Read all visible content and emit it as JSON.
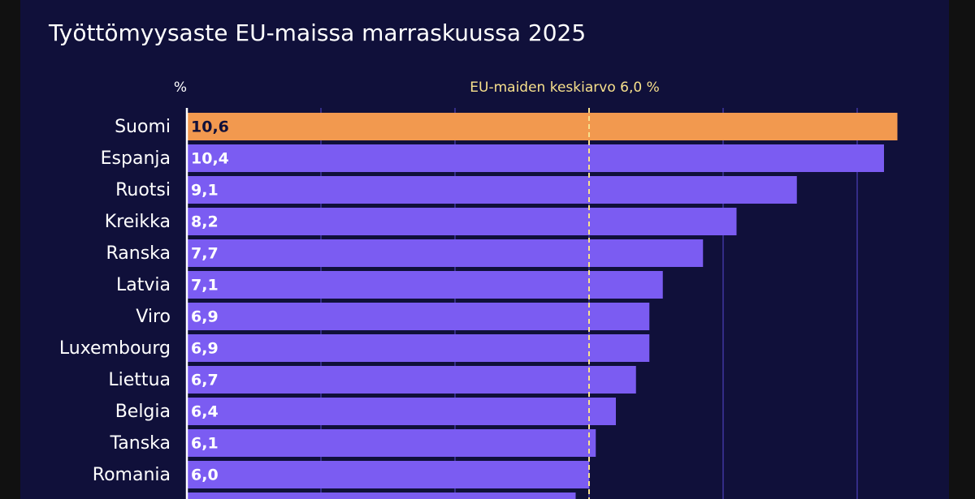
{
  "chart_data": {
    "type": "hbar",
    "title": "Työttömyysaste EU-maissa marraskuussa 2025",
    "x_label": "%",
    "categories": [
      "Suomi",
      "Espanja",
      "Ruotsi",
      "Kreikka",
      "Ranska",
      "Latvia",
      "Viro",
      "Luxembourg",
      "Liettua",
      "Belgia",
      "Tanska",
      "Romania",
      null
    ],
    "values": [
      10.6,
      10.4,
      9.1,
      8.2,
      7.7,
      7.1,
      6.9,
      6.9,
      6.7,
      6.4,
      6.1,
      6.0,
      5.8
    ],
    "value_labels": [
      "10,6",
      "10,4",
      "9,1",
      "8,2",
      "7,7",
      "7,1",
      "6,9",
      "6,9",
      "6,7",
      "6,4",
      "6,1",
      "6,0",
      null
    ],
    "colors": [
      "#f2994f",
      "#7b5cf2",
      "#7b5cf2",
      "#7b5cf2",
      "#7b5cf2",
      "#7b5cf2",
      "#7b5cf2",
      "#7b5cf2",
      "#7b5cf2",
      "#7b5cf2",
      "#7b5cf2",
      "#7b5cf2",
      "#7b5cf2"
    ],
    "xlim": [
      0,
      11
    ],
    "xticks": [
      2,
      4,
      6,
      8,
      10
    ],
    "grid": true,
    "reference_line": {
      "value": 6.0,
      "label": "EU-maiden keskiarvo 6,0 %",
      "color": "#f7e08c"
    }
  }
}
